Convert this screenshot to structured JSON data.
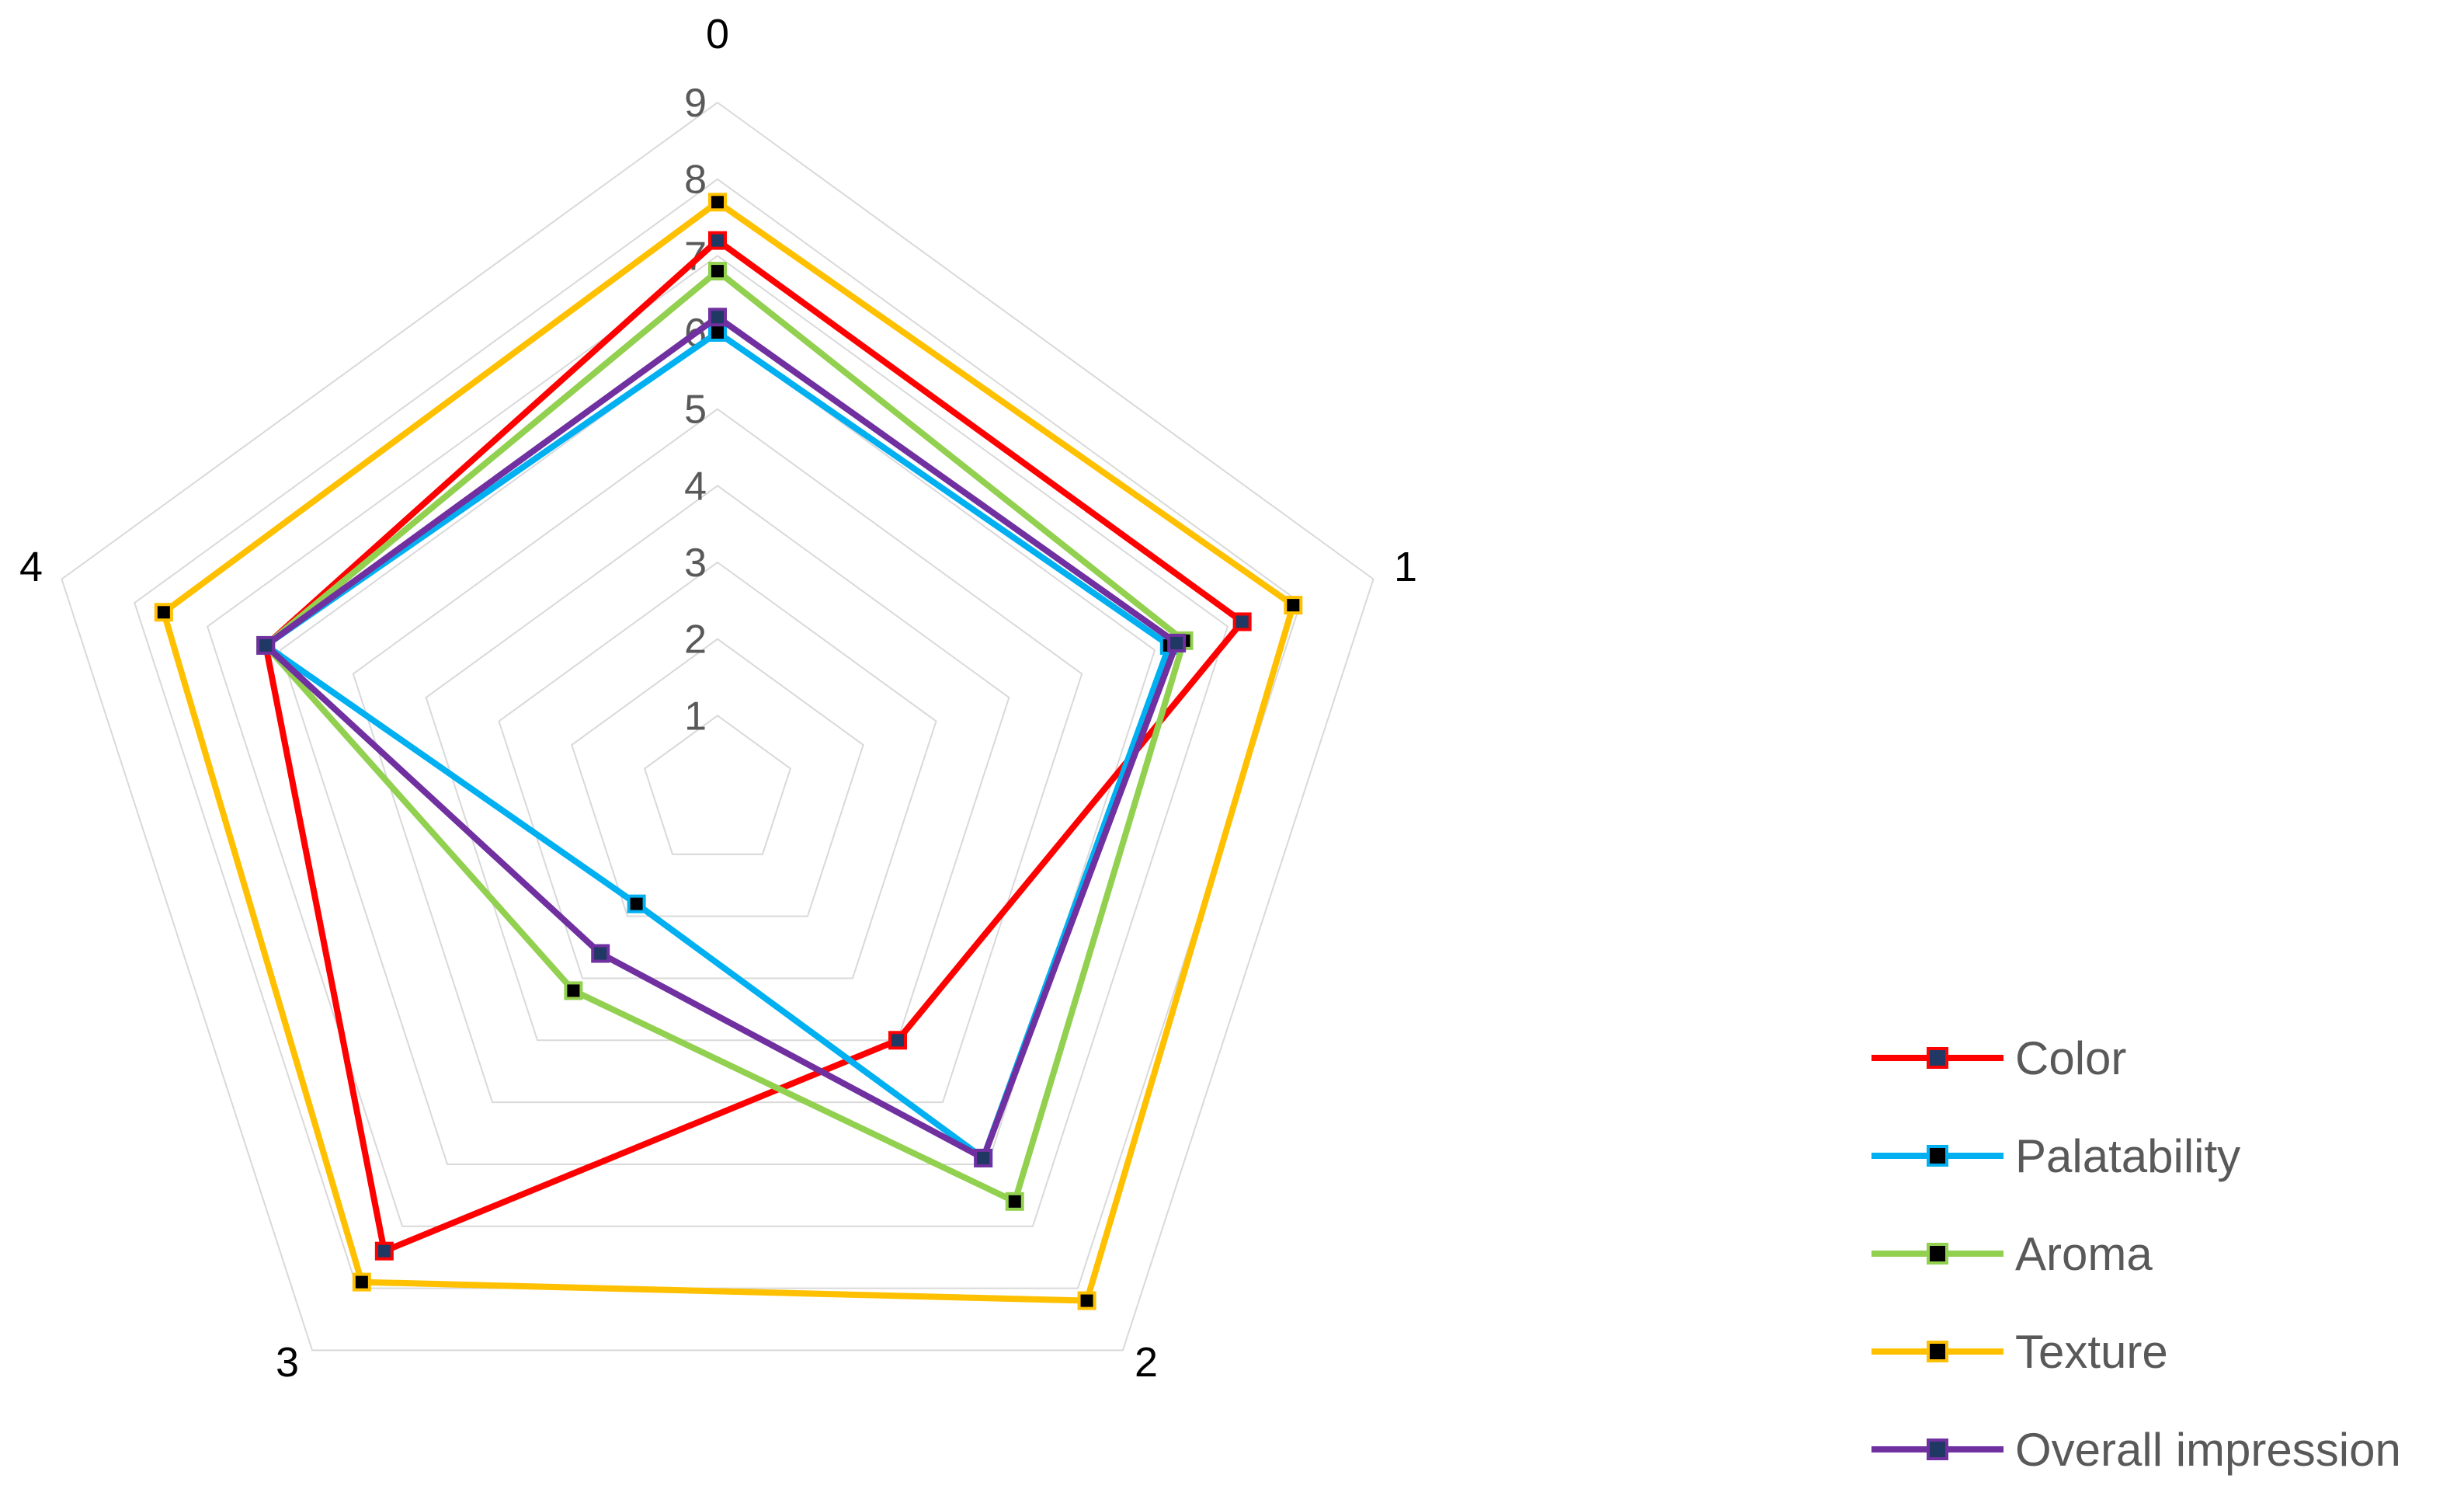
{
  "chart_data": {
    "type": "radar",
    "categories": [
      "0",
      "1",
      "2",
      "3",
      "4"
    ],
    "rlim": [
      0,
      9
    ],
    "rticks": [
      "1",
      "2",
      "3",
      "4",
      "5",
      "6",
      "7",
      "8",
      "9"
    ],
    "grid": true,
    "legend": "bottom-right",
    "series": [
      {
        "name": "Color",
        "color": "#ff0000",
        "marker": "#1f3864",
        "values": [
          7.2,
          7.2,
          4.0,
          7.4,
          6.2
        ]
      },
      {
        "name": "Palatability",
        "color": "#00b0f0",
        "marker": "#000000",
        "values": [
          6.0,
          6.2,
          5.9,
          1.8,
          6.2
        ]
      },
      {
        "name": "Aroma",
        "color": "#92d050",
        "marker": "#000000",
        "values": [
          6.8,
          6.4,
          6.6,
          3.2,
          6.2
        ]
      },
      {
        "name": "Texture",
        "color": "#ffc000",
        "marker": "#000000",
        "values": [
          7.7,
          7.9,
          8.2,
          7.9,
          7.6
        ]
      },
      {
        "name": "Overall impression",
        "color": "#7030a0",
        "marker": "#1f3864",
        "values": [
          6.2,
          6.3,
          5.9,
          2.6,
          6.2
        ]
      }
    ]
  }
}
